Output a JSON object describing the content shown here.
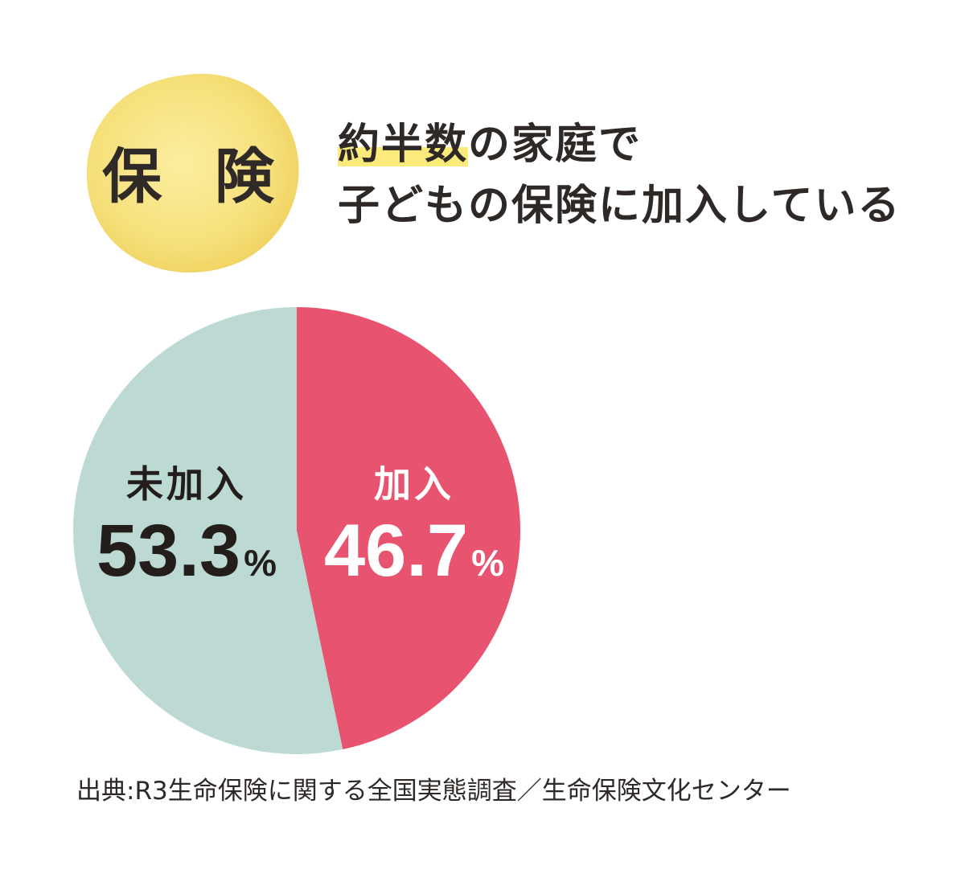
{
  "badge": {
    "label": "保 険",
    "color": "#f7e27a"
  },
  "headline": {
    "highlight": "約半数",
    "line1_rest": "の家庭で",
    "line2": "子どもの保険に加入している",
    "highlight_color": "#fbeb7a"
  },
  "chart_data": {
    "type": "pie",
    "start_angle_deg": 0,
    "direction": "clockwise",
    "slices": [
      {
        "label": "加入",
        "value": 46.7,
        "display": "46.7",
        "unit": "%",
        "color": "#e8546f",
        "text_color": "#ffffff"
      },
      {
        "label": "未加入",
        "value": 53.3,
        "display": "53.3",
        "unit": "%",
        "color": "#bcdad3",
        "text_color": "#231e1c"
      }
    ]
  },
  "source": "出典:R3生命保険に関する全国実態調査／生命保険文化センター"
}
